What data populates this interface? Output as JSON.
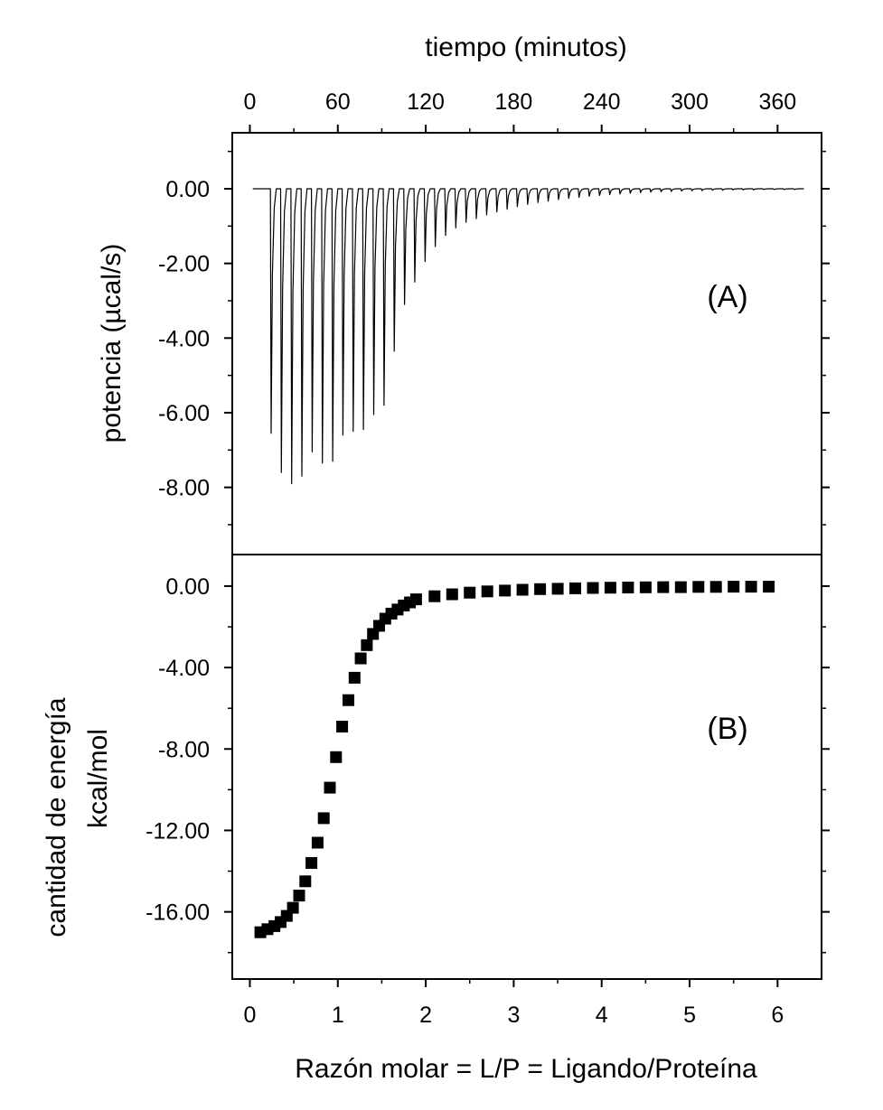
{
  "chart_data": [
    {
      "type": "line",
      "panel_label": "(A)",
      "xlabel": "tiempo (minutos)",
      "ylabel": "potencia (µcal/s)",
      "x_axis_position": "top",
      "xlim": [
        -12,
        390
      ],
      "ylim": [
        -9.8,
        1.5
      ],
      "xticks": [
        0,
        60,
        120,
        180,
        240,
        300,
        360
      ],
      "xtick_labels": [
        "0",
        "60",
        "120",
        "180",
        "240",
        "300",
        "360"
      ],
      "yticks": [
        0,
        -2,
        -4,
        -6,
        -8
      ],
      "ytick_labels": [
        "0.00",
        "-2.00",
        "-4.00",
        "-6.00",
        "-8.00"
      ],
      "grid": false,
      "baseline": 0,
      "time_range": [
        2,
        378
      ],
      "series": [
        {
          "injection_times_min": [
            14,
            21,
            28,
            35,
            42,
            49,
            56,
            63,
            70,
            77,
            84,
            91,
            98,
            105,
            112,
            119,
            126,
            133,
            140,
            147,
            154,
            161,
            168,
            175,
            182,
            189,
            196,
            203,
            210,
            217,
            224,
            231,
            238,
            245,
            252,
            259,
            266,
            273,
            280,
            287,
            294,
            301,
            308,
            315,
            322,
            329,
            336,
            343,
            350,
            357,
            364,
            371
          ],
          "peak_values_ucal_s": [
            -6.55,
            -7.6,
            -7.9,
            -7.7,
            -7.05,
            -7.35,
            -7.3,
            -6.6,
            -6.5,
            -6.45,
            -6.05,
            -5.8,
            -4.35,
            -3.1,
            -2.5,
            -1.95,
            -1.55,
            -1.25,
            -1.05,
            -0.9,
            -0.8,
            -0.7,
            -0.62,
            -0.55,
            -0.48,
            -0.42,
            -0.37,
            -0.33,
            -0.29,
            -0.26,
            -0.23,
            -0.2,
            -0.18,
            -0.16,
            -0.14,
            -0.12,
            -0.1,
            -0.09,
            -0.08,
            -0.07,
            -0.06,
            -0.05,
            -0.05,
            -0.04,
            -0.04,
            -0.03,
            -0.03,
            -0.03,
            -0.02,
            -0.02,
            -0.02,
            -0.02
          ]
        }
      ]
    },
    {
      "type": "scatter",
      "panel_label": "(B)",
      "xlabel": "Razón molar = L/P = Ligando/Proteína",
      "ylabel": [
        "cantidad de energía",
        "kcal/mol"
      ],
      "xlim": [
        -0.2,
        6.5
      ],
      "ylim": [
        -19.3,
        1.55
      ],
      "xticks": [
        0,
        1,
        2,
        3,
        4,
        5,
        6
      ],
      "xtick_labels": [
        "0",
        "1",
        "2",
        "3",
        "4",
        "5",
        "6"
      ],
      "yticks": [
        0,
        -4,
        -8,
        -12,
        -16
      ],
      "ytick_labels": [
        "0.00",
        "-4.00",
        "-8.00",
        "-12.00",
        "-16.00"
      ],
      "grid": false,
      "marker": "square",
      "series": [
        {
          "x": [
            0.12,
            0.2,
            0.28,
            0.35,
            0.42,
            0.49,
            0.56,
            0.63,
            0.7,
            0.77,
            0.84,
            0.91,
            0.98,
            1.05,
            1.12,
            1.19,
            1.26,
            1.33,
            1.4,
            1.47,
            1.54,
            1.61,
            1.68,
            1.75,
            1.82,
            1.89,
            2.1,
            2.3,
            2.5,
            2.7,
            2.9,
            3.1,
            3.3,
            3.5,
            3.7,
            3.9,
            4.1,
            4.3,
            4.5,
            4.7,
            4.9,
            5.1,
            5.3,
            5.5,
            5.7,
            5.9
          ],
          "y": [
            -17.0,
            -16.85,
            -16.7,
            -16.5,
            -16.2,
            -15.8,
            -15.2,
            -14.5,
            -13.6,
            -12.6,
            -11.4,
            -9.9,
            -8.4,
            -6.9,
            -5.6,
            -4.5,
            -3.55,
            -2.9,
            -2.35,
            -1.95,
            -1.6,
            -1.35,
            -1.15,
            -0.95,
            -0.8,
            -0.65,
            -0.5,
            -0.4,
            -0.32,
            -0.26,
            -0.22,
            -0.18,
            -0.15,
            -0.13,
            -0.11,
            -0.09,
            -0.08,
            -0.07,
            -0.06,
            -0.05,
            -0.05,
            -0.04,
            -0.04,
            -0.03,
            -0.03,
            -0.03
          ]
        }
      ]
    }
  ]
}
